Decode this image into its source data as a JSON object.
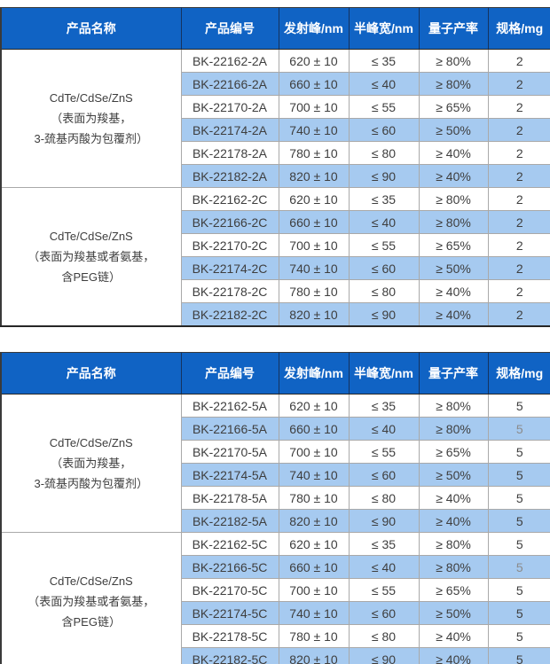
{
  "colors": {
    "header_bg": "#1063c4",
    "header_text": "#ffffff",
    "alt_row_bg": "#a6caf0",
    "cell_text": "#3e3e3e",
    "muted_text": "#8b8b8b"
  },
  "tables": [
    {
      "columns": [
        "产品名称",
        "产品编号",
        "发射峰/nm",
        "半峰宽/nm",
        "量子产率",
        "规格/mg"
      ],
      "groups": [
        {
          "name_lines": [
            "CdTe/CdSe/ZnS",
            "（表面为羧基，",
            "3-巯基丙酸为包覆剂）"
          ],
          "rows": [
            {
              "code": "BK-22162-2A",
              "emission": "620 ± 10",
              "fwhm": "≤ 35",
              "qy": "≥ 80%",
              "spec": "2"
            },
            {
              "code": "BK-22166-2A",
              "emission": "660 ± 10",
              "fwhm": "≤ 40",
              "qy": "≥ 80%",
              "spec": "2"
            },
            {
              "code": "BK-22170-2A",
              "emission": "700 ± 10",
              "fwhm": "≤ 55",
              "qy": "≥ 65%",
              "spec": "2"
            },
            {
              "code": "BK-22174-2A",
              "emission": "740 ± 10",
              "fwhm": "≤ 60",
              "qy": "≥ 50%",
              "spec": "2"
            },
            {
              "code": "BK-22178-2A",
              "emission": "780 ± 10",
              "fwhm": "≤ 80",
              "qy": "≥ 40%",
              "spec": "2"
            },
            {
              "code": "BK-22182-2A",
              "emission": "820 ± 10",
              "fwhm": "≤ 90",
              "qy": "≥ 40%",
              "spec": "2"
            }
          ]
        },
        {
          "name_lines": [
            "CdTe/CdSe/ZnS",
            "（表面为羧基或者氨基，",
            "含PEG链）"
          ],
          "rows": [
            {
              "code": "BK-22162-2C",
              "emission": "620 ± 10",
              "fwhm": "≤ 35",
              "qy": "≥ 80%",
              "spec": "2"
            },
            {
              "code": "BK-22166-2C",
              "emission": "660 ± 10",
              "fwhm": "≤ 40",
              "qy": "≥ 80%",
              "spec": "2"
            },
            {
              "code": "BK-22170-2C",
              "emission": "700 ± 10",
              "fwhm": "≤ 55",
              "qy": "≥ 65%",
              "spec": "2"
            },
            {
              "code": "BK-22174-2C",
              "emission": "740 ± 10",
              "fwhm": "≤ 60",
              "qy": "≥ 50%",
              "spec": "2"
            },
            {
              "code": "BK-22178-2C",
              "emission": "780 ± 10",
              "fwhm": "≤ 80",
              "qy": "≥ 40%",
              "spec": "2"
            },
            {
              "code": "BK-22182-2C",
              "emission": "820 ± 10",
              "fwhm": "≤ 90",
              "qy": "≥ 40%",
              "spec": "2"
            }
          ]
        }
      ]
    },
    {
      "columns": [
        "产品名称",
        "产品编号",
        "发射峰/nm",
        "半峰宽/nm",
        "量子产率",
        "规格/mg"
      ],
      "groups": [
        {
          "name_lines": [
            "CdTe/CdSe/ZnS",
            "（表面为羧基，",
            "3-巯基丙酸为包覆剂）"
          ],
          "rows": [
            {
              "code": "BK-22162-5A",
              "emission": "620 ± 10",
              "fwhm": "≤ 35",
              "qy": "≥ 80%",
              "spec": "5"
            },
            {
              "code": "BK-22166-5A",
              "emission": "660 ± 10",
              "fwhm": "≤ 40",
              "qy": "≥ 80%",
              "spec": "5",
              "spec_muted": true
            },
            {
              "code": "BK-22170-5A",
              "emission": "700 ± 10",
              "fwhm": "≤ 55",
              "qy": "≥ 65%",
              "spec": "5"
            },
            {
              "code": "BK-22174-5A",
              "emission": "740 ± 10",
              "fwhm": "≤ 60",
              "qy": "≥ 50%",
              "spec": "5"
            },
            {
              "code": "BK-22178-5A",
              "emission": "780 ± 10",
              "fwhm": "≤ 80",
              "qy": "≥ 40%",
              "spec": "5"
            },
            {
              "code": "BK-22182-5A",
              "emission": "820 ± 10",
              "fwhm": "≤ 90",
              "qy": "≥ 40%",
              "spec": "5"
            }
          ]
        },
        {
          "name_lines": [
            "CdTe/CdSe/ZnS",
            "（表面为羧基或者氨基，",
            "含PEG链）"
          ],
          "rows": [
            {
              "code": "BK-22162-5C",
              "emission": "620 ± 10",
              "fwhm": "≤ 35",
              "qy": "≥ 80%",
              "spec": "5"
            },
            {
              "code": "BK-22166-5C",
              "emission": "660 ± 10",
              "fwhm": "≤ 40",
              "qy": "≥ 80%",
              "spec": "5",
              "spec_muted": true
            },
            {
              "code": "BK-22170-5C",
              "emission": "700 ± 10",
              "fwhm": "≤ 55",
              "qy": "≥ 65%",
              "spec": "5"
            },
            {
              "code": "BK-22174-5C",
              "emission": "740 ± 10",
              "fwhm": "≤ 60",
              "qy": "≥ 50%",
              "spec": "5"
            },
            {
              "code": "BK-22178-5C",
              "emission": "780 ± 10",
              "fwhm": "≤ 80",
              "qy": "≥ 40%",
              "spec": "5"
            },
            {
              "code": "BK-22182-5C",
              "emission": "820 ± 10",
              "fwhm": "≤ 90",
              "qy": "≥ 40%",
              "spec": "5"
            }
          ]
        }
      ]
    }
  ]
}
